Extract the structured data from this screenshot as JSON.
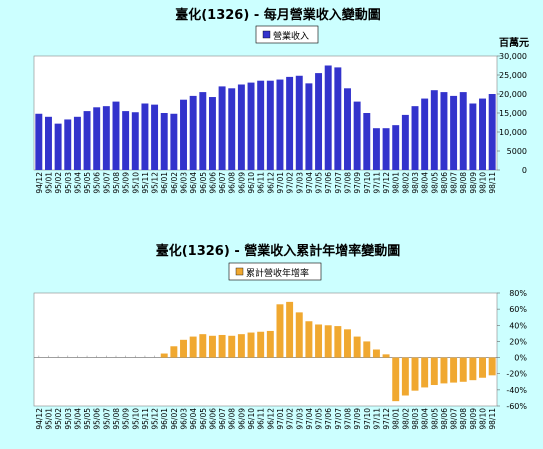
{
  "chart_data": [
    {
      "type": "bar",
      "title": "臺化(1326) - 每月營業收入變動圖",
      "legend": "營業收入",
      "unit_label": "百萬元",
      "legend_position": "top",
      "grid": false,
      "bar_color": "#3333cc",
      "ylim": [
        0,
        30000
      ],
      "yticks": [
        "0",
        "5000",
        "10,000",
        "15,000",
        "20,000",
        "25,000",
        "30,000"
      ],
      "categories": [
        "94/12",
        "95/01",
        "95/02",
        "95/03",
        "95/04",
        "95/05",
        "95/06",
        "95/07",
        "95/08",
        "95/09",
        "95/10",
        "95/11",
        "95/12",
        "96/01",
        "96/02",
        "96/03",
        "96/04",
        "96/05",
        "96/06",
        "96/07",
        "96/08",
        "96/09",
        "96/10",
        "96/11",
        "96/12",
        "97/01",
        "97/02",
        "97/03",
        "97/04",
        "97/05",
        "97/06",
        "97/07",
        "97/08",
        "97/09",
        "97/10",
        "97/11",
        "97/12",
        "98/01",
        "98/02",
        "98/03",
        "98/04",
        "98/05",
        "98/06",
        "98/07",
        "98/08",
        "98/09",
        "98/10",
        "98/11"
      ],
      "values": [
        14800,
        14000,
        12200,
        13300,
        14000,
        15500,
        16500,
        16800,
        18000,
        15500,
        15200,
        17500,
        17200,
        15000,
        14800,
        18500,
        19500,
        20500,
        19200,
        22000,
        21500,
        22500,
        23000,
        23500,
        23500,
        23800,
        24500,
        24800,
        22800,
        25500,
        27500,
        27000,
        21500,
        18000,
        15000,
        11000,
        11000,
        11800,
        14500,
        16800,
        18800,
        21000,
        20500,
        19500,
        20500,
        17500,
        18800,
        20000
      ]
    },
    {
      "type": "bar",
      "title": "臺化(1326) -  營業收入累計年增率變動圖",
      "legend": "累計營收年增率",
      "legend_position": "top",
      "grid": false,
      "bar_color": "#f0a830",
      "ylim": [
        -60,
        80
      ],
      "yticks": [
        "-60%",
        "-40%",
        "-20%",
        "0%",
        "20%",
        "40%",
        "60%",
        "80%"
      ],
      "categories": [
        "94/12",
        "95/01",
        "95/02",
        "95/03",
        "95/04",
        "95/05",
        "95/06",
        "95/07",
        "95/08",
        "95/09",
        "95/10",
        "95/11",
        "95/12",
        "96/01",
        "96/02",
        "96/03",
        "96/04",
        "96/05",
        "96/06",
        "96/07",
        "96/08",
        "96/09",
        "96/10",
        "96/11",
        "96/12",
        "97/01",
        "97/02",
        "97/03",
        "97/04",
        "97/05",
        "97/06",
        "97/07",
        "97/08",
        "97/09",
        "97/10",
        "97/11",
        "97/12",
        "98/01",
        "98/02",
        "98/03",
        "98/04",
        "98/05",
        "98/06",
        "98/07",
        "98/08",
        "98/09",
        "98/10",
        "98/11"
      ],
      "values": [
        0,
        0,
        0,
        0,
        0,
        0,
        0,
        0,
        0,
        0,
        0,
        0,
        0,
        5,
        14,
        22,
        26,
        29,
        27,
        28,
        27,
        29,
        31,
        32,
        33,
        66,
        69,
        56,
        45,
        41,
        40,
        39,
        35,
        26,
        20,
        10,
        4,
        -54,
        -47,
        -41,
        -37,
        -34,
        -32,
        -31,
        -30,
        -28,
        -25,
        -22
      ]
    }
  ]
}
